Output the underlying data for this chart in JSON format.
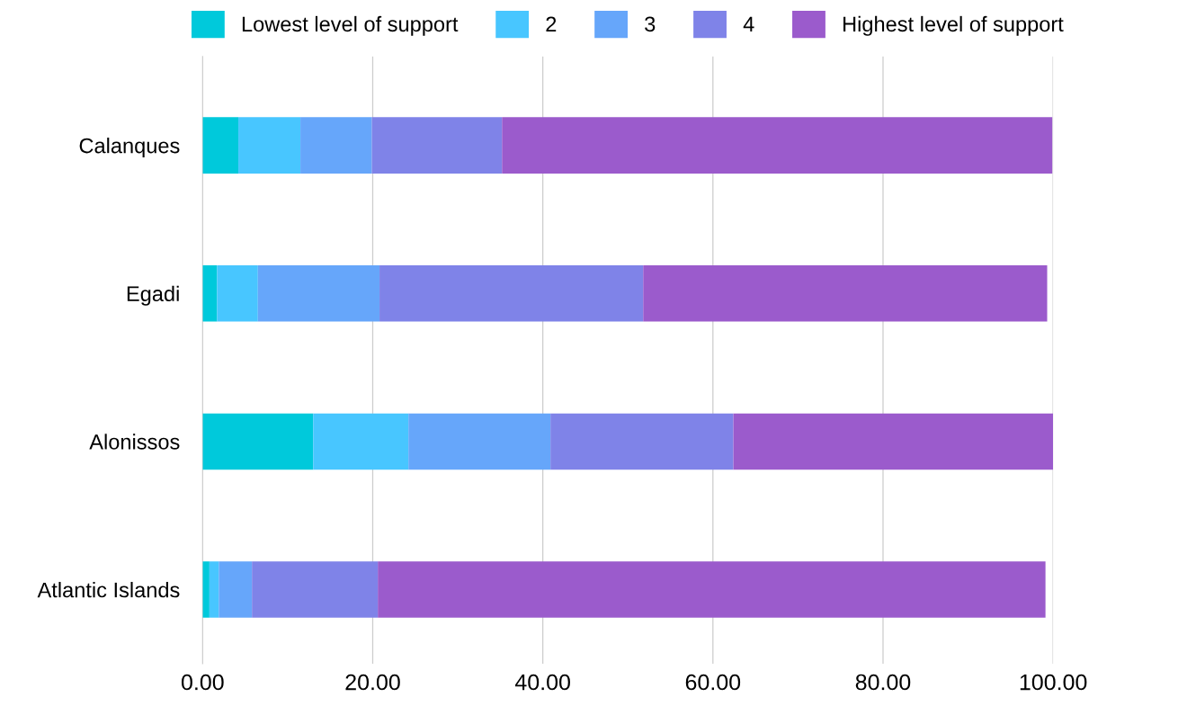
{
  "chart_data": {
    "type": "bar",
    "orientation": "horizontal",
    "stacked": true,
    "categories": [
      "Calanques",
      "Egadi",
      "Alonissos",
      "Atlantic Islands"
    ],
    "series": [
      {
        "name": "Lowest level of support",
        "color": "#00c9db",
        "values": [
          4.2,
          1.7,
          13.0,
          0.8
        ]
      },
      {
        "name": "2",
        "color": "#48c6ff",
        "values": [
          7.3,
          4.8,
          11.2,
          1.1
        ]
      },
      {
        "name": "3",
        "color": "#66a6fa",
        "values": [
          8.4,
          14.3,
          16.7,
          3.9
        ]
      },
      {
        "name": "4",
        "color": "#7f83e8",
        "values": [
          15.3,
          31.0,
          21.5,
          14.8
        ]
      },
      {
        "name": "Highest level of support",
        "color": "#9b5bcc",
        "values": [
          64.7,
          47.5,
          37.6,
          78.5
        ]
      }
    ],
    "xlim": [
      0,
      100
    ],
    "xticks": [
      {
        "value": 0,
        "label": "0.00"
      },
      {
        "value": 20,
        "label": "20.00"
      },
      {
        "value": 40,
        "label": "40.00"
      },
      {
        "value": 60,
        "label": "60.00"
      },
      {
        "value": 80,
        "label": "80.00"
      },
      {
        "value": 100,
        "label": "100.00"
      }
    ],
    "grid": "x",
    "legend": "top"
  }
}
